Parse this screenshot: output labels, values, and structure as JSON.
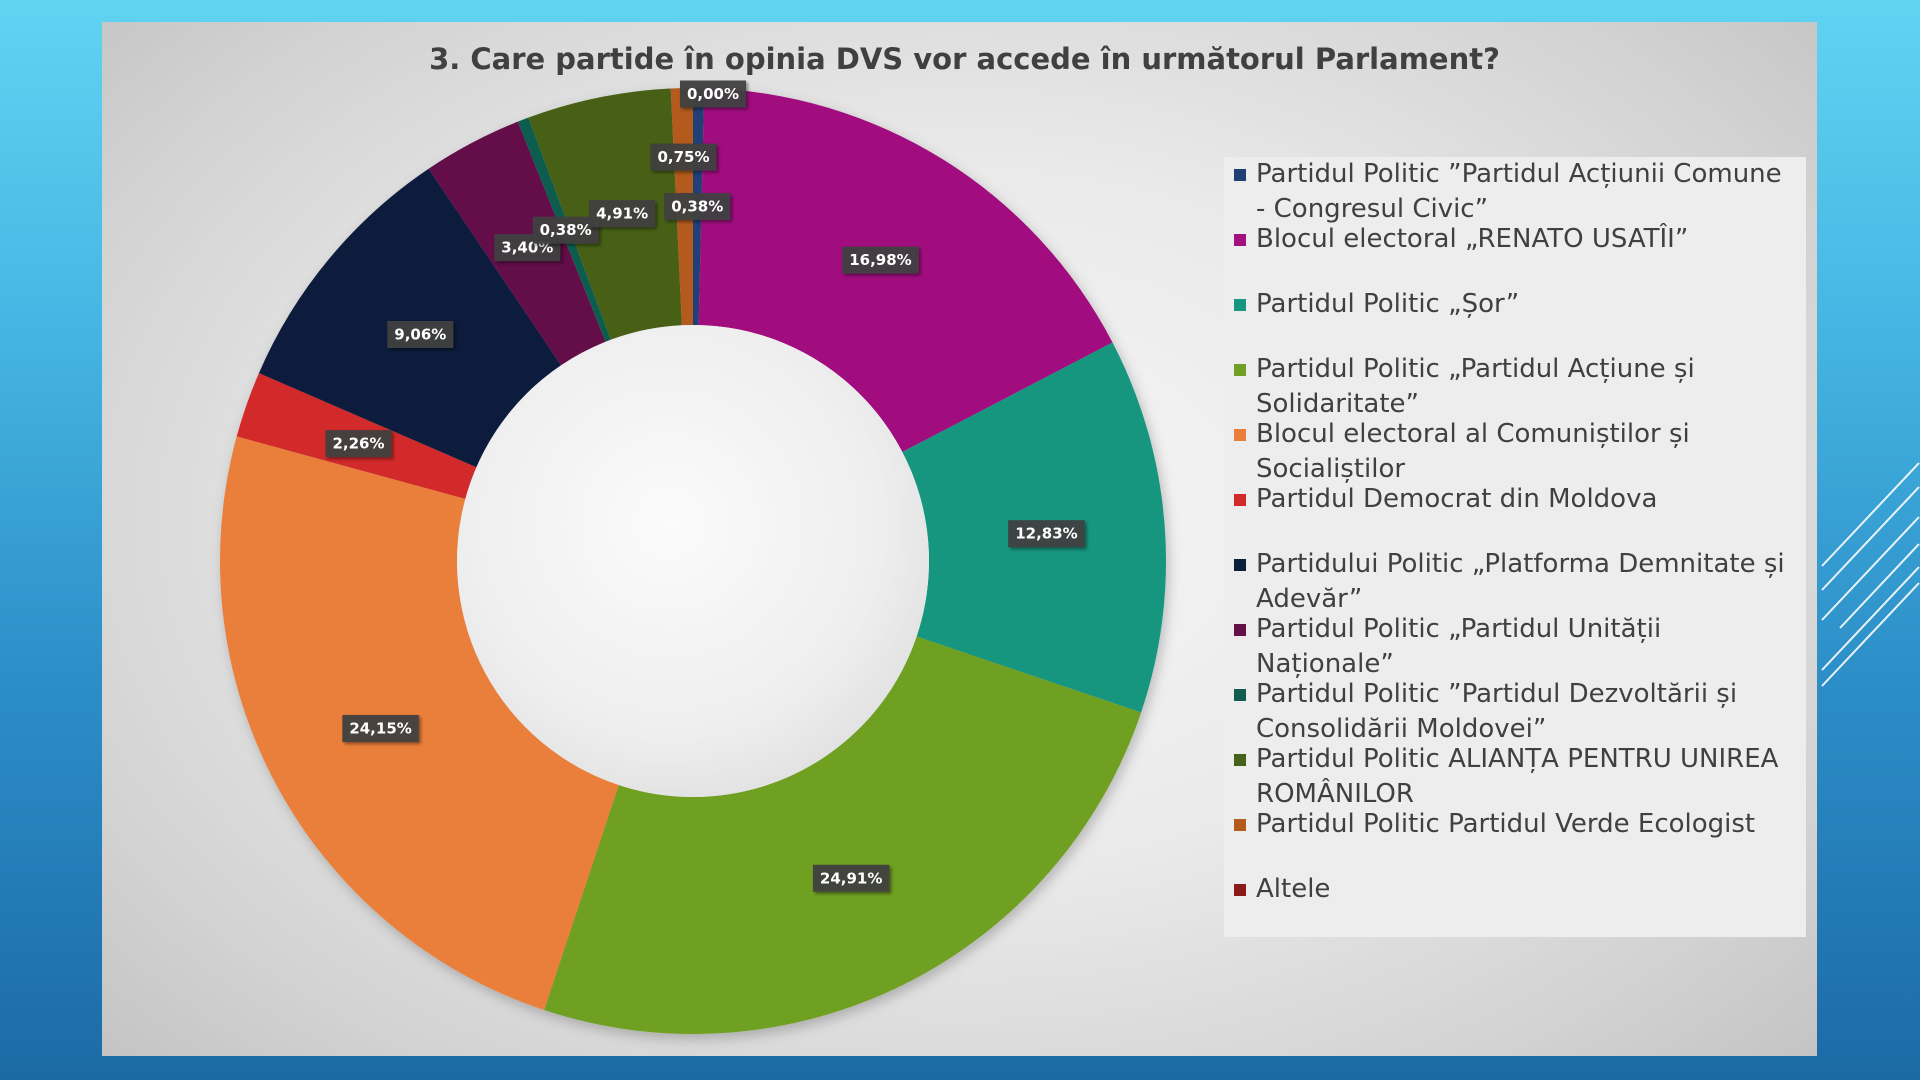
{
  "chart_data": {
    "type": "pie",
    "donut": true,
    "title": "3. Care partide în opinia DVS vor accede în următorul Parlament?",
    "categories": [
      "Partidul Politic ”Partidul Acțiunii Comune - Congresul Civic”",
      "Blocul electoral „RENATO USATÎI”",
      "Partidul Politic „Șor”",
      "Partidul Politic „Partidul Acțiune și Solidaritate”",
      "Blocul electoral al Comuniștilor și Socialiștilor",
      "Partidul Democrat din Moldova",
      "Partidului Politic „Platforma Demnitate și Adevăr”",
      "Partidul Politic „Partidul Unității Naționale”",
      "Partidul Politic ”Partidul Dezvoltării și Consolidării Moldovei”",
      "Partidul Politic ALIANȚA PENTRU UNIREA ROMÂNILOR",
      "Partidul Politic Partidul Verde Ecologist",
      "Altele"
    ],
    "values": [
      0.38,
      16.98,
      12.83,
      24.91,
      24.15,
      2.26,
      9.06,
      3.4,
      0.38,
      4.91,
      0.75,
      0.0
    ],
    "data_labels": [
      "0,38%",
      "16,98%",
      "12,83%",
      "24,91%",
      "24,15%",
      "2,26%",
      "9,06%",
      "3,40%",
      "0,38%",
      "4,91%",
      "0,75%",
      "0,00%"
    ],
    "colors": [
      "#203f74",
      "#a1117f",
      "#16967e",
      "#6fa024",
      "#e97f3b",
      "#d22a2a",
      "#0b1e3c",
      "#641049",
      "#0f5d4f",
      "#466119",
      "#b45a1d",
      "#8b1a1a"
    ],
    "legend_position": "right"
  }
}
